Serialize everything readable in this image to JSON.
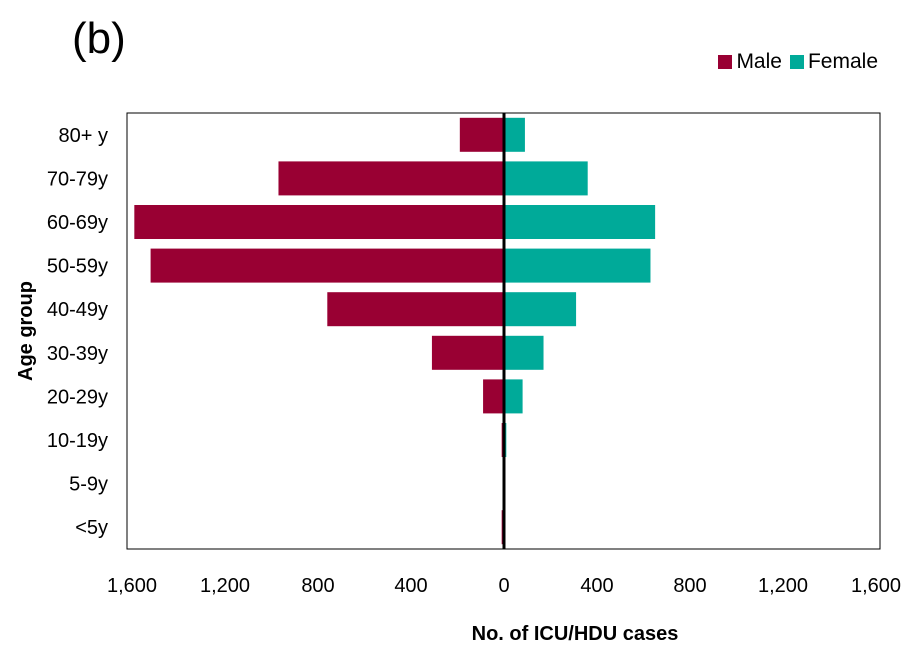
{
  "panel_label": "(b)",
  "colors": {
    "male": "#990033",
    "female": "#00AA99",
    "axis": "#000000"
  },
  "chart_data": {
    "type": "bar",
    "orientation": "horizontal",
    "layout": "population-pyramid",
    "title": "",
    "xlabel": "No. of ICU/HDU cases",
    "ylabel": "Age group",
    "categories": [
      "80+ y",
      "70-79y",
      "60-69y",
      "50-59y",
      "40-49y",
      "30-39y",
      "20-29y",
      "10-19y",
      "5-9y",
      "<5y"
    ],
    "series": [
      {
        "name": "Male",
        "side": "left",
        "values": [
          190,
          970,
          1590,
          1520,
          760,
          310,
          90,
          10,
          0,
          10
        ]
      },
      {
        "name": "Female",
        "side": "right",
        "values": [
          90,
          360,
          650,
          630,
          310,
          170,
          80,
          10,
          0,
          0
        ]
      }
    ],
    "xlim": [
      -1600,
      1600
    ],
    "x_tick_values": [
      -1600,
      -1200,
      -800,
      -400,
      0,
      400,
      800,
      1200,
      1600
    ],
    "x_tick_labels": [
      "1,600",
      "1,200",
      "800",
      "400",
      "0",
      "400",
      "800",
      "1,200",
      "1,600"
    ],
    "grid": false,
    "legend_position": "top-right"
  }
}
